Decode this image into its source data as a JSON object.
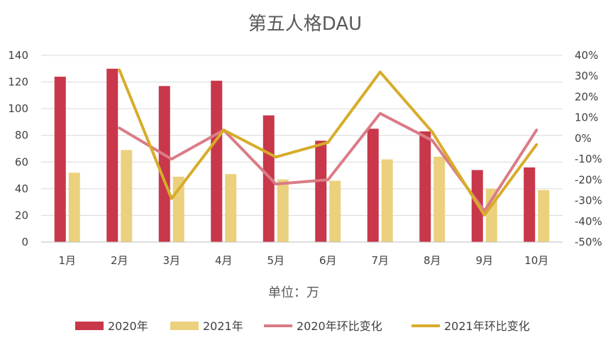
{
  "chart_data": {
    "type": "bar",
    "title": "第五人格DAU",
    "xlabel": "单位：万",
    "categories": [
      "1月",
      "2月",
      "3月",
      "4月",
      "5月",
      "6月",
      "7月",
      "8月",
      "9月",
      "10月"
    ],
    "ylim": [
      0,
      140
    ],
    "yticks": [
      "0",
      "20",
      "40",
      "60",
      "80",
      "100",
      "120",
      "140"
    ],
    "y2lim": [
      -0.5,
      0.4
    ],
    "y2ticks": [
      "-50%",
      "-40%",
      "-30%",
      "-20%",
      "-10%",
      "0%",
      "10%",
      "20%",
      "30%",
      "40%"
    ],
    "series": [
      {
        "name": "2020年",
        "type": "bar",
        "axis": "left",
        "color": "#c8374a",
        "values": [
          124,
          130,
          117,
          121,
          95,
          76,
          85,
          83,
          54,
          56
        ]
      },
      {
        "name": "2021年",
        "type": "bar",
        "axis": "left",
        "color": "#ebd17e",
        "values": [
          52,
          69,
          49,
          51,
          47,
          46,
          62,
          64,
          40,
          39
        ]
      },
      {
        "name": "2020年环比变化",
        "type": "line",
        "axis": "right",
        "color": "#da7c86",
        "values": [
          null,
          0.05,
          -0.1,
          0.04,
          -0.22,
          -0.2,
          0.12,
          -0.01,
          -0.35,
          0.04
        ]
      },
      {
        "name": "2021年环比变化",
        "type": "line",
        "axis": "right",
        "color": "#d7ac2a",
        "values": [
          null,
          0.33,
          -0.29,
          0.04,
          -0.09,
          -0.02,
          0.32,
          0.03,
          -0.37,
          -0.03
        ]
      }
    ]
  }
}
